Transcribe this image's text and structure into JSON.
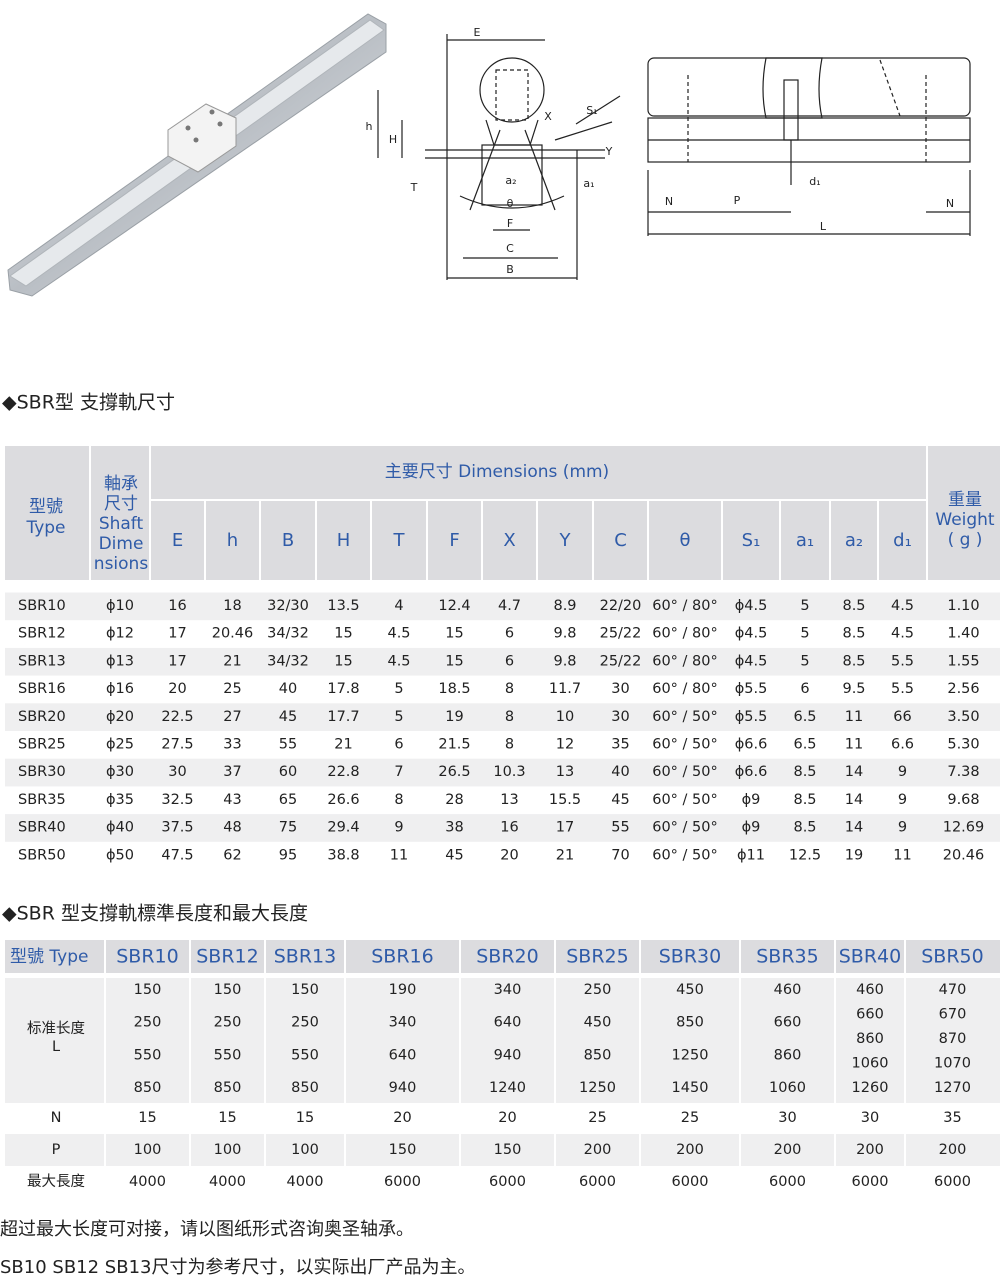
{
  "diagram": {
    "labels": [
      "E",
      "h",
      "H",
      "T",
      "X",
      "S₁",
      "Y",
      "a₂",
      "θ",
      "F",
      "C",
      "B",
      "a₁",
      "N",
      "P",
      "d₁",
      "N",
      "L"
    ]
  },
  "table1": {
    "title": "◆SBR型 支撐軌尺寸",
    "type_header": [
      "型號",
      "Type"
    ],
    "shaft_header": [
      "軸承",
      "尺寸",
      "Shaft",
      "Dime",
      "nsions"
    ],
    "dimensions_header": "主要尺寸 Dimensions (mm)",
    "columns": [
      "E",
      "h",
      "B",
      "H",
      "T",
      "F",
      "X",
      "Y",
      "C",
      "θ",
      "S₁",
      "a₁",
      "a₂",
      "d₁"
    ],
    "weight_header": [
      "重量",
      "Weight",
      "( g )"
    ],
    "rows": [
      [
        "SBR10",
        "ϕ10",
        "16",
        "18",
        "32/30",
        "13.5",
        "4",
        "12.4",
        "4.7",
        "8.9",
        "22/20",
        "60° / 80°",
        "ϕ4.5",
        "5",
        "8.5",
        "4.5",
        "1.10"
      ],
      [
        "SBR12",
        "ϕ12",
        "17",
        "20.46",
        "34/32",
        "15",
        "4.5",
        "15",
        "6",
        "9.8",
        "25/22",
        "60° / 80°",
        "ϕ4.5",
        "5",
        "8.5",
        "4.5",
        "1.40"
      ],
      [
        "SBR13",
        "ϕ13",
        "17",
        "21",
        "34/32",
        "15",
        "4.5",
        "15",
        "6",
        "9.8",
        "25/22",
        "60° / 80°",
        "ϕ4.5",
        "5",
        "8.5",
        "5.5",
        "1.55"
      ],
      [
        "SBR16",
        "ϕ16",
        "20",
        "25",
        "40",
        "17.8",
        "5",
        "18.5",
        "8",
        "11.7",
        "30",
        "60° / 80°",
        "ϕ5.5",
        "6",
        "9.5",
        "5.5",
        "2.56"
      ],
      [
        "SBR20",
        "ϕ20",
        "22.5",
        "27",
        "45",
        "17.7",
        "5",
        "19",
        "8",
        "10",
        "30",
        "60° / 50°",
        "ϕ5.5",
        "6.5",
        "11",
        "66",
        "3.50"
      ],
      [
        "SBR25",
        "ϕ25",
        "27.5",
        "33",
        "55",
        "21",
        "6",
        "21.5",
        "8",
        "12",
        "35",
        "60° / 50°",
        "ϕ6.6",
        "6.5",
        "11",
        "6.6",
        "5.30"
      ],
      [
        "SBR30",
        "ϕ30",
        "30",
        "37",
        "60",
        "22.8",
        "7",
        "26.5",
        "10.3",
        "13",
        "40",
        "60° / 50°",
        "ϕ6.6",
        "8.5",
        "14",
        "9",
        "7.38"
      ],
      [
        "SBR35",
        "ϕ35",
        "32.5",
        "43",
        "65",
        "26.6",
        "8",
        "28",
        "13",
        "15.5",
        "45",
        "60° / 50°",
        "ϕ9",
        "8.5",
        "14",
        "9",
        "9.68"
      ],
      [
        "SBR40",
        "ϕ40",
        "37.5",
        "48",
        "75",
        "29.4",
        "9",
        "38",
        "16",
        "17",
        "55",
        "60° / 50°",
        "ϕ9",
        "8.5",
        "14",
        "9",
        "12.69"
      ],
      [
        "SBR50",
        "ϕ50",
        "47.5",
        "62",
        "95",
        "38.8",
        "11",
        "45",
        "20",
        "21",
        "70",
        "60° / 50°",
        "ϕ11",
        "12.5",
        "19",
        "11",
        "20.46"
      ]
    ]
  },
  "table2": {
    "title": "◆SBR 型支撐軌標準長度和最大長度",
    "header": [
      "型號 Type",
      "SBR10",
      "SBR12",
      "SBR13",
      "SBR16",
      "SBR20",
      "SBR25",
      "SBR30",
      "SBR35",
      "SBR40",
      "SBR50"
    ],
    "standard_label": [
      "标准长度",
      "L"
    ],
    "standard": [
      [
        "150",
        "250",
        "550",
        "850"
      ],
      [
        "150",
        "250",
        "550",
        "850"
      ],
      [
        "150",
        "250",
        "550",
        "850"
      ],
      [
        "190",
        "340",
        "640",
        "940"
      ],
      [
        "340",
        "640",
        "940",
        "1240"
      ],
      [
        "250",
        "450",
        "850",
        "1250"
      ],
      [
        "450",
        "850",
        "1250",
        "1450"
      ],
      [
        "460",
        "660",
        "860",
        "1060"
      ],
      [
        "460",
        "660",
        "860",
        "1060",
        "1260"
      ],
      [
        "470",
        "670",
        "870",
        "1070",
        "1270"
      ]
    ],
    "rows": [
      {
        "label": "N",
        "cells": [
          "15",
          "15",
          "15",
          "20",
          "20",
          "25",
          "25",
          "30",
          "30",
          "35"
        ]
      },
      {
        "label": "P",
        "cells": [
          "100",
          "100",
          "100",
          "150",
          "150",
          "200",
          "200",
          "200",
          "200",
          "200"
        ]
      },
      {
        "label": "最大長度",
        "cells": [
          "4000",
          "4000",
          "4000",
          "6000",
          "6000",
          "6000",
          "6000",
          "6000",
          "6000",
          "6000"
        ]
      }
    ]
  },
  "notes": [
    "超过最大长度可对接，请以图纸形式咨询奥圣轴承。",
    "SB10 SB12 SB13尺寸为参考尺寸，以实际出厂产品为主。"
  ]
}
